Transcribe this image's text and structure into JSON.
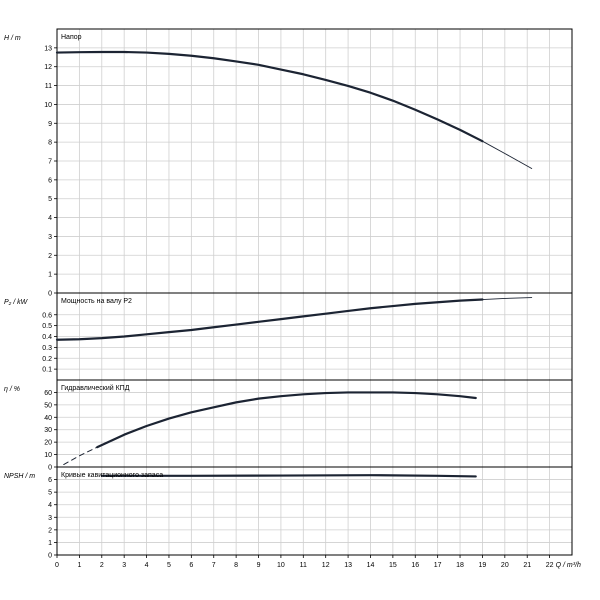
{
  "chart_data": {
    "type": "line",
    "x_axis": {
      "label": "Q / m³/h",
      "range": [
        0,
        23
      ],
      "ticks": [
        0,
        1,
        2,
        3,
        4,
        5,
        6,
        7,
        8,
        9,
        10,
        11,
        12,
        13,
        14,
        15,
        16,
        17,
        18,
        19,
        20,
        21,
        22
      ]
    },
    "panels": [
      {
        "id": "head",
        "ylabel": "H / m",
        "title": "Напор",
        "ylim": [
          0,
          14
        ],
        "yticks": [
          0,
          1,
          2,
          3,
          4,
          5,
          6,
          7,
          8,
          9,
          10,
          11,
          12,
          13
        ],
        "series": [
          {
            "style": "thick",
            "x": [
              0,
              1,
              2,
              3,
              4,
              5,
              6,
              7,
              8,
              9,
              10,
              11,
              12,
              13,
              14,
              15,
              16,
              17,
              18,
              19
            ],
            "y": [
              12.75,
              12.77,
              12.78,
              12.78,
              12.75,
              12.68,
              12.58,
              12.45,
              12.28,
              12.1,
              11.85,
              11.6,
              11.3,
              10.98,
              10.62,
              10.2,
              9.72,
              9.2,
              8.65,
              8.05
            ]
          },
          {
            "style": "thin",
            "x": [
              19,
              20,
              21.2
            ],
            "y": [
              8.05,
              7.4,
              6.6
            ]
          }
        ]
      },
      {
        "id": "power",
        "ylabel": "P₂ / kW",
        "title": "Мощность на валу P2",
        "ylim": [
          0,
          0.8
        ],
        "yticks": [
          0.1,
          0.2,
          0.3,
          0.4,
          0.5,
          0.6
        ],
        "series": [
          {
            "style": "thick",
            "x": [
              0,
              1,
              2,
              3,
              4,
              5,
              6,
              7,
              8,
              9,
              10,
              11,
              12,
              13,
              14,
              15,
              16,
              17,
              18,
              19
            ],
            "y": [
              0.37,
              0.375,
              0.385,
              0.4,
              0.42,
              0.44,
              0.46,
              0.485,
              0.51,
              0.535,
              0.56,
              0.585,
              0.61,
              0.635,
              0.66,
              0.68,
              0.7,
              0.715,
              0.73,
              0.74
            ]
          },
          {
            "style": "thin",
            "x": [
              19,
              20,
              21.2
            ],
            "y": [
              0.74,
              0.75,
              0.758
            ]
          }
        ]
      },
      {
        "id": "efficiency",
        "ylabel": "η / %",
        "title": "Гидравлический КПД",
        "ylim": [
          0,
          70
        ],
        "yticks": [
          0,
          10,
          20,
          30,
          40,
          50,
          60
        ],
        "series": [
          {
            "style": "dashed",
            "x": [
              0.3,
              1,
              1.8
            ],
            "y": [
              2,
              9,
              16
            ]
          },
          {
            "style": "thick",
            "x": [
              1.8,
              3,
              4,
              5,
              6,
              7,
              8,
              9,
              10,
              11,
              12,
              13,
              14,
              15,
              16,
              17,
              18,
              18.7
            ],
            "y": [
              16,
              26,
              33,
              39,
              44,
              48,
              52,
              55,
              57,
              58.5,
              59.5,
              60,
              60,
              60,
              59.5,
              58.5,
              57,
              55.5
            ]
          }
        ]
      },
      {
        "id": "npsh",
        "ylabel": "NPSH / m",
        "title": "Кривые кавитационного запаса",
        "ylim": [
          0,
          7
        ],
        "yticks": [
          0,
          1,
          2,
          3,
          4,
          5,
          6
        ],
        "series": [
          {
            "style": "thick",
            "x": [
              2,
              6,
              10,
              14,
              17,
              18.7
            ],
            "y": [
              6.3,
              6.3,
              6.32,
              6.35,
              6.3,
              6.25
            ]
          }
        ]
      }
    ]
  }
}
